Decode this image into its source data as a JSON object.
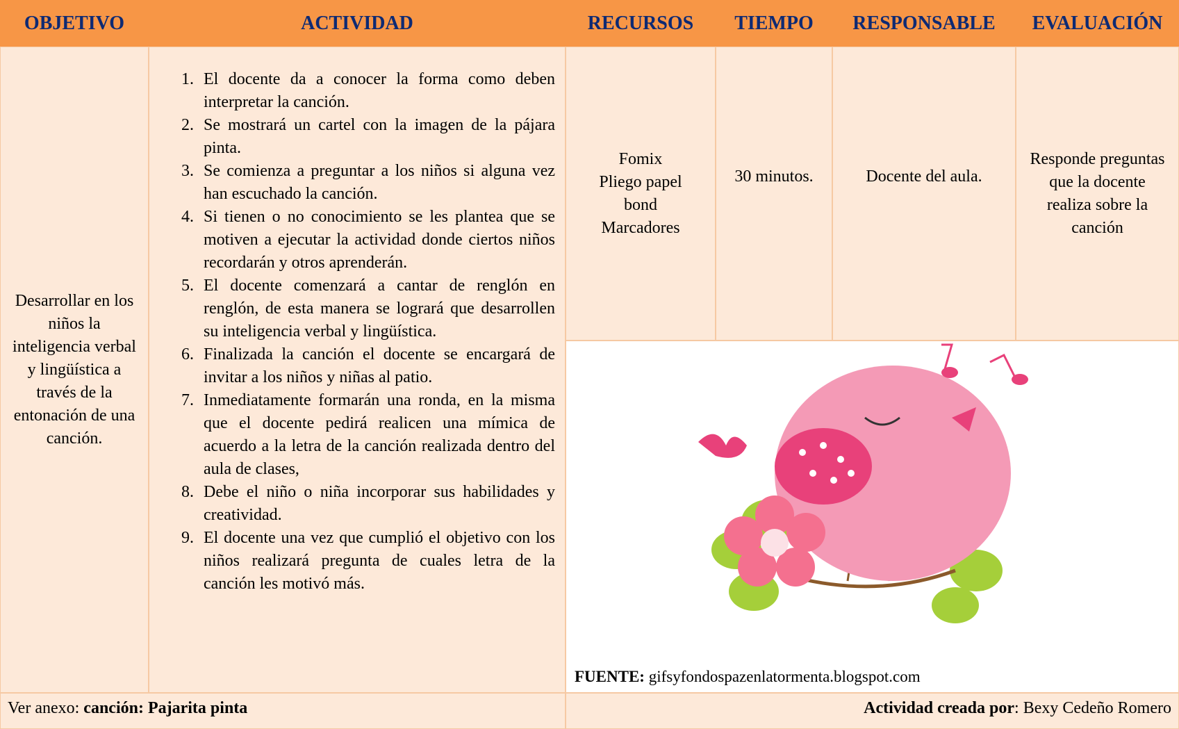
{
  "header": {
    "columns": [
      "OBJETIVO",
      "ACTIVIDAD",
      "RECURSOS",
      "TIEMPO",
      "RESPONSABLE",
      "EVALUACIÓN"
    ]
  },
  "row": {
    "objetivo": "Desarrollar en los niños la inteligencia verbal y lingüística a través de la entonación de una canción.",
    "actividades": [
      "El docente da a conocer la forma como deben interpretar la canción.",
      "Se mostrará un cartel con la imagen de la pájara pinta.",
      "Se comienza a preguntar a los niños si alguna vez han escuchado la canción.",
      "Si tienen o no conocimiento se les plantea que se motiven a ejecutar la actividad donde ciertos niños recordarán y otros aprenderán.",
      "El docente comenzará a cantar de renglón en renglón, de esta manera se logrará que desarrollen su inteligencia verbal y lingüística.",
      "Finalizada la canción el docente se encargará de invitar a los niños y niñas al patio.",
      "Inmediatamente formarán una ronda, en la misma que el docente pedirá realicen una mímica de acuerdo a la letra de la canción realizada dentro del aula de clases,",
      "Debe el niño o niña incorporar sus habilidades y creatividad.",
      "El docente una vez que cumplió el objetivo con los niños realizará pregunta de cuales letra de la canción les motivó más."
    ],
    "recursos": [
      "Fomix",
      "Pliego papel bond",
      "Marcadores"
    ],
    "tiempo": "30 minutos.",
    "responsable": "Docente del aula.",
    "evaluacion": "Responde preguntas que la docente realiza sobre la canción",
    "fuente_label": "FUENTE:",
    "fuente": "gifsyfondospazenlatormenta.blogspot.com"
  },
  "footer": {
    "anexo_label": "Ver anexo: ",
    "anexo": "canción: Pajarita pinta",
    "autor_label": "Actividad creada por",
    "autor": ": Bexy Cedeño Romero"
  }
}
